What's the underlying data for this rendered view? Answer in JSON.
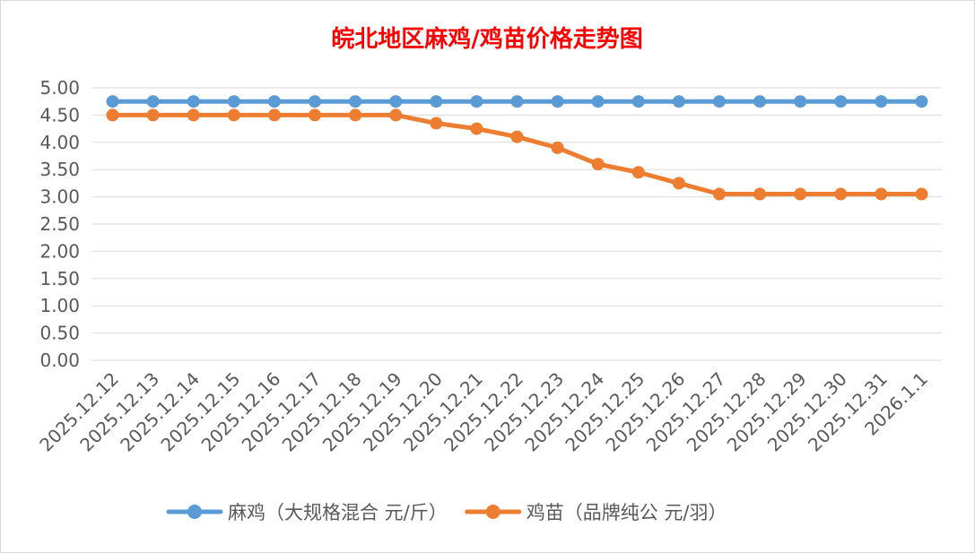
{
  "chart_data": {
    "type": "line",
    "title": "皖北地区麻鸡/鸡苗价格走势图",
    "xlabel": "",
    "ylabel": "",
    "categories": [
      "2025.12.12",
      "2025.12.13",
      "2025.12.14",
      "2025.12.15",
      "2025.12.16",
      "2025.12.17",
      "2025.12.18",
      "2025.12.19",
      "2025.12.20",
      "2025.12.21",
      "2025.12.22",
      "2025.12.23",
      "2025.12.24",
      "2025.12.25",
      "2025.12.26",
      "2025.12.27",
      "2025.12.28",
      "2025.12.29",
      "2025.12.30",
      "2025.12.31",
      "2026.1.1"
    ],
    "ylim": [
      0,
      5
    ],
    "ytick_step": 0.5,
    "ytick_labels": [
      "0.00",
      "0.50",
      "1.00",
      "1.50",
      "2.00",
      "2.50",
      "3.00",
      "3.50",
      "4.00",
      "4.50",
      "5.00"
    ],
    "grid": true,
    "legend_position": "bottom",
    "series": [
      {
        "name": "麻鸡（大规格混合 元/斤）",
        "color": "#5b9bd5",
        "values": [
          4.75,
          4.75,
          4.75,
          4.75,
          4.75,
          4.75,
          4.75,
          4.75,
          4.75,
          4.75,
          4.75,
          4.75,
          4.75,
          4.75,
          4.75,
          4.75,
          4.75,
          4.75,
          4.75,
          4.75,
          4.75
        ]
      },
      {
        "name": "鸡苗（品牌纯公 元/羽）",
        "color": "#ed7d31",
        "values": [
          4.5,
          4.5,
          4.5,
          4.5,
          4.5,
          4.5,
          4.5,
          4.5,
          4.35,
          4.25,
          4.1,
          3.9,
          3.6,
          3.45,
          3.25,
          3.05,
          3.05,
          3.05,
          3.05,
          3.05,
          3.05
        ]
      }
    ]
  }
}
